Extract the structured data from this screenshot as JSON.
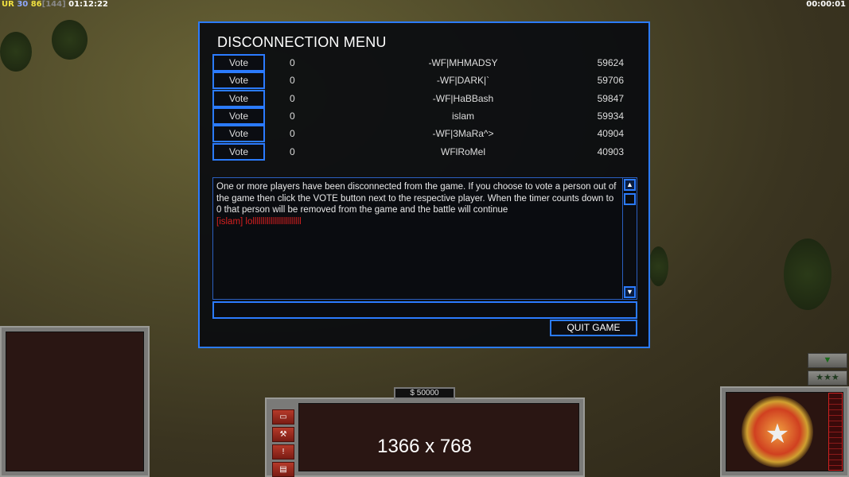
{
  "hud": {
    "prefix": "UR",
    "fps": "30",
    "value": "86",
    "bracket": "[144]",
    "game_time": "01:12:22",
    "timer": "00:00:01"
  },
  "dialog": {
    "title": "DISCONNECTION MENU",
    "players": [
      {
        "vote": "Vote",
        "count": "0",
        "name": "-WF|MHMADSY",
        "id": "59624"
      },
      {
        "vote": "Vote",
        "count": "0",
        "name": "-WF|DARK|`",
        "id": "59706"
      },
      {
        "vote": "Vote",
        "count": "0",
        "name": "-WF|HaBBash",
        "id": "59847"
      },
      {
        "vote": "Vote",
        "count": "0",
        "name": "islam",
        "id": "59934"
      },
      {
        "vote": "Vote",
        "count": "0",
        "name": "-WF|3MaRa^>",
        "id": "40904"
      },
      {
        "vote": "Vote",
        "count": "0",
        "name": "WFlRoMel",
        "id": "40903"
      }
    ],
    "message": "One or more players have been disconnected from the game. If you choose to vote a person out of the game then click the VOTE button next to the respective player. When the timer counts down to 0 that person will be removed from the game and the battle will continue",
    "chat_line": "[islam] lollllllllllllllllllllllll",
    "chat_input": "",
    "quit_label": "QUIT GAME"
  },
  "bottom": {
    "money": "$ 50000",
    "resolution": "1366 x 768"
  },
  "colors": {
    "accent": "#2b7bff",
    "chat": "#d62020"
  }
}
